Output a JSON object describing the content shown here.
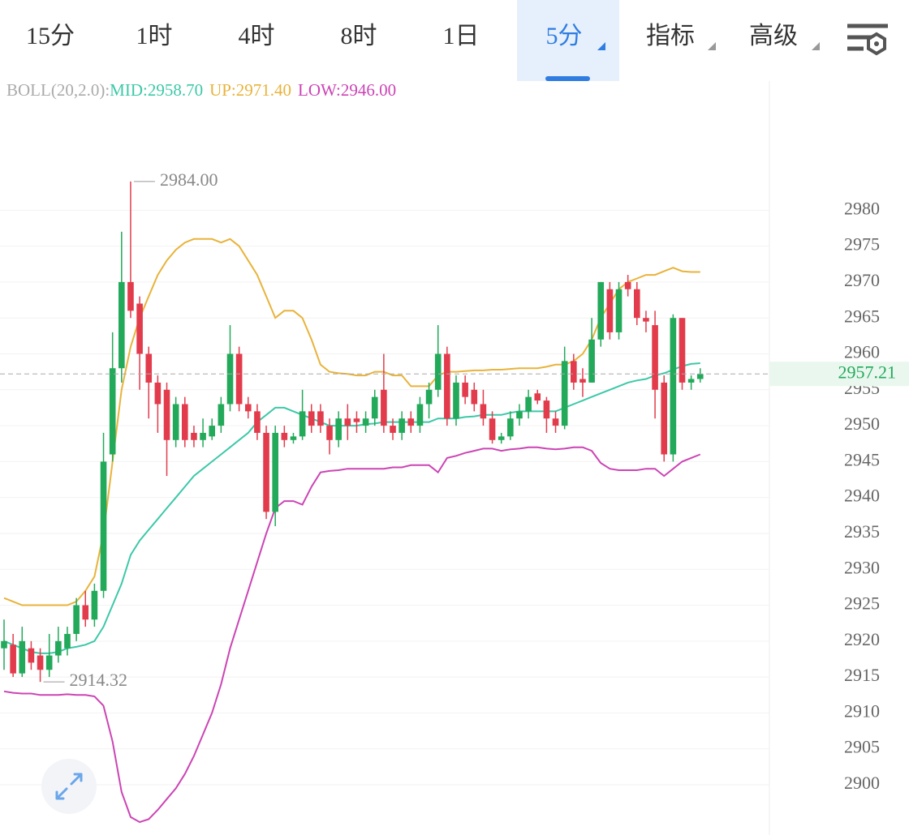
{
  "tabs": [
    "15分",
    "1时",
    "4时",
    "8时",
    "1日",
    "5分",
    "指标",
    "高级"
  ],
  "chart_data": {
    "type": "candlestick",
    "indicator": "BOLL(20,2.0):",
    "legend": [
      "MID:2958.70",
      "UP:2971.40",
      "LOW:2946.00"
    ],
    "open": [
      2919,
      2919.5,
      2915.5,
      2919,
      2918,
      2916,
      2918,
      2919,
      2921,
      2925,
      2923,
      2927,
      2946,
      2958,
      2970,
      2967,
      2960,
      2956,
      2955,
      2948,
      2953,
      2949,
      2948,
      2948.5,
      2950,
      2953,
      2960,
      2953,
      2952,
      2949,
      2938,
      2949,
      2948,
      2948.5,
      2952,
      2952,
      2950,
      2948,
      2951,
      2951,
      2950,
      2951,
      2955,
      2950,
      2949,
      2951,
      2950,
      2953,
      2955,
      2960,
      2951,
      2956,
      2955,
      2953,
      2951,
      2948,
      2948.5,
      2951,
      2952,
      2954.5,
      2953.5,
      2951,
      2950,
      2959,
      2956.5,
      2956,
      2962,
      2969,
      2963,
      2970,
      2969,
      2965,
      2964,
      2956,
      2946,
      2965,
      2956,
      2956.5
    ],
    "high": [
      2923,
      2921,
      2922,
      2920,
      2919,
      2921,
      2922,
      2922,
      2926,
      2927,
      2928,
      2949,
      2963,
      2977,
      2984,
      2968,
      2961,
      2957,
      2956,
      2954,
      2954,
      2950,
      2951,
      2951,
      2954,
      2964,
      2961,
      2954,
      2953,
      2950,
      2950,
      2950,
      2949,
      2955,
      2953,
      2953,
      2951,
      2952,
      2953,
      2952,
      2952,
      2955,
      2960,
      2951,
      2952,
      2952,
      2954,
      2956,
      2964,
      2961,
      2957,
      2957,
      2956,
      2955,
      2952,
      2949,
      2952,
      2953,
      2955,
      2955,
      2954,
      2952,
      2961,
      2960,
      2958,
      2965,
      2970,
      2970,
      2970,
      2971,
      2970,
      2966,
      2966,
      2957,
      2965.5,
      2965,
      2957,
      2958
    ],
    "low": [
      2916,
      2915,
      2915,
      2916,
      2914.32,
      2915,
      2917,
      2918,
      2920,
      2922,
      2922,
      2926,
      2945,
      2956,
      2965,
      2955,
      2951,
      2949,
      2943,
      2947,
      2947,
      2947,
      2947,
      2948,
      2949,
      2952,
      2952,
      2951,
      2948,
      2937,
      2936,
      2947,
      2947.5,
      2948,
      2949,
      2949,
      2946,
      2947,
      2948,
      2949,
      2949,
      2950,
      2949,
      2948,
      2948,
      2949,
      2949,
      2951,
      2954,
      2950,
      2950,
      2953,
      2952,
      2950,
      2947.5,
      2947.5,
      2948,
      2950,
      2951,
      2953,
      2949,
      2949,
      2949.5,
      2955,
      2954,
      2956,
      2961,
      2962,
      2962,
      2968,
      2964,
      2963,
      2951,
      2945,
      2945,
      2955,
      2955,
      2956
    ],
    "close": [
      2920,
      2915.5,
      2920,
      2917,
      2916,
      2918,
      2920,
      2921,
      2925,
      2923,
      2927,
      2945,
      2958,
      2970,
      2966,
      2960,
      2956,
      2953,
      2948,
      2953,
      2948,
      2948,
      2949,
      2950,
      2953,
      2960,
      2953,
      2952,
      2949,
      2938,
      2949,
      2948,
      2948.5,
      2952,
      2950,
      2950,
      2948,
      2951,
      2950,
      2950.5,
      2951,
      2954,
      2950,
      2949,
      2951,
      2950,
      2953,
      2955,
      2960,
      2951,
      2956,
      2954,
      2953,
      2951,
      2948,
      2948.5,
      2951,
      2952,
      2954,
      2953.5,
      2951,
      2950,
      2959,
      2956,
      2956,
      2962,
      2970,
      2963,
      2969,
      2969,
      2965,
      2964.5,
      2955,
      2946,
      2965,
      2956,
      2956.5,
      2957.2
    ],
    "series": [
      {
        "name": "UP",
        "color": "#e8b33a",
        "values": [
          2926,
          2925.5,
          2925,
          2925,
          2925,
          2925,
          2925,
          2925,
          2925.5,
          2927,
          2929,
          2935,
          2945,
          2955,
          2961,
          2965,
          2968,
          2971,
          2973,
          2974.5,
          2975.5,
          2976,
          2976,
          2976,
          2975.5,
          2976,
          2975,
          2973,
          2971,
          2968,
          2965,
          2966,
          2966,
          2965,
          2962,
          2958.5,
          2957.5,
          2957.3,
          2957.2,
          2957,
          2957,
          2957.5,
          2957.5,
          2957,
          2957,
          2955.5,
          2955.5,
          2955.5,
          2957,
          2957.5,
          2957.5,
          2957.6,
          2957.7,
          2957.7,
          2957.8,
          2957.8,
          2957.9,
          2958,
          2958,
          2958,
          2958.2,
          2958.5,
          2958.5,
          2959,
          2960,
          2962,
          2965,
          2967,
          2969,
          2970,
          2970.5,
          2971,
          2971,
          2971.5,
          2972,
          2971.5,
          2971.4,
          2971.4
        ]
      },
      {
        "name": "MID",
        "color": "#3cc8a8",
        "values": [
          2920,
          2919.5,
          2919,
          2918.5,
          2918.3,
          2918.3,
          2918.5,
          2919,
          2919.2,
          2919.5,
          2920,
          2922,
          2925,
          2928,
          2932,
          2934,
          2935.5,
          2937,
          2938.5,
          2940,
          2941.5,
          2943,
          2944,
          2945,
          2946,
          2947,
          2948,
          2949,
          2950.5,
          2951.5,
          2952.5,
          2952.5,
          2952,
          2951.5,
          2951,
          2950.5,
          2950,
          2950,
          2950,
          2950,
          2950.2,
          2950.3,
          2950.5,
          2950.5,
          2950.5,
          2950.5,
          2950.5,
          2950.5,
          2951,
          2951,
          2951,
          2951.2,
          2951.3,
          2951.5,
          2951.5,
          2951.5,
          2951.8,
          2952,
          2952,
          2952,
          2952,
          2952,
          2952.5,
          2953,
          2953.5,
          2954,
          2954.5,
          2955,
          2955.5,
          2956,
          2956.3,
          2956.5,
          2957,
          2957.3,
          2957.8,
          2958.3,
          2958.6,
          2958.7
        ]
      },
      {
        "name": "LOW",
        "color": "#cc44b4",
        "values": [
          2913,
          2912.8,
          2912.7,
          2912.7,
          2912.5,
          2912.5,
          2912.5,
          2912.6,
          2912.5,
          2912.5,
          2912.3,
          2911,
          2906,
          2899,
          2895.5,
          2894.8,
          2895.2,
          2896.5,
          2898,
          2899.5,
          2901.5,
          2904,
          2907,
          2910,
          2914,
          2919,
          2923,
          2927,
          2931,
          2935,
          2938.5,
          2939.5,
          2939.5,
          2939,
          2941.5,
          2943.5,
          2943.7,
          2943.8,
          2944,
          2944,
          2944,
          2944,
          2944,
          2944.2,
          2944.2,
          2944.5,
          2944.5,
          2944.5,
          2943.5,
          2945.5,
          2945.8,
          2946.2,
          2946.5,
          2946.8,
          2946.8,
          2946.5,
          2946.7,
          2946.8,
          2947,
          2947,
          2946.8,
          2946.7,
          2946.8,
          2947,
          2947,
          2946.5,
          2944.8,
          2944,
          2943.8,
          2943.8,
          2943.8,
          2944,
          2944,
          2943,
          2944,
          2945,
          2945.5,
          2946
        ]
      }
    ],
    "up_color": "#22a95a",
    "down_color": "#e23c4c",
    "max_label": {
      "value": 2984,
      "label": "2984.00"
    },
    "min_label": 2914.32,
    "last_price": 2957.21,
    "ylim": [
      2893,
      2994.6
    ],
    "yticks": [
      2900,
      2905,
      2910,
      2915,
      2920,
      2925,
      2930,
      2935,
      2940,
      2945,
      2950,
      2955,
      2960,
      2965,
      2970,
      2975,
      2980
    ],
    "grid": true
  }
}
